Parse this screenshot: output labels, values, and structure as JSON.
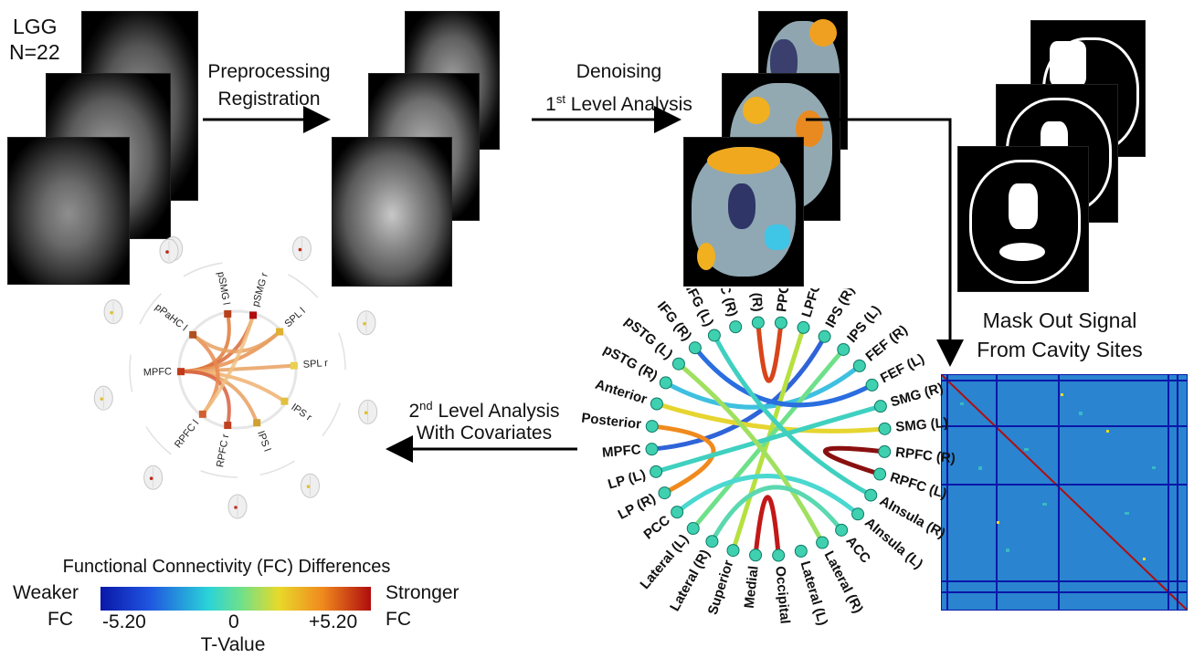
{
  "cohort": {
    "group": "LGG",
    "n": "N=22"
  },
  "steps": {
    "step1": [
      "Preprocessing",
      "Registration"
    ],
    "step2_line1": "Denoising",
    "step2_line2_sup": "st",
    "step2_line2_pre": "1",
    "step2_line2_post": " Level Analysis",
    "mask": [
      "Mask Out Signal",
      "From Cavity Sites"
    ],
    "step3_line1_pre": "2",
    "step3_line1_sup": "nd",
    "step3_line1_post": " Level Analysis",
    "step3_line2": "With Covariates"
  },
  "fc_title": "Functional Connectivity (FC) Differences",
  "colorbar": {
    "left_label": [
      "Weaker",
      "FC"
    ],
    "right_label": [
      "Stronger",
      "FC"
    ],
    "ticks": [
      "-5.20",
      "0",
      "+5.20"
    ],
    "axis_label": "T-Value",
    "min": -5.2,
    "max": 5.2
  },
  "small_circle_labels": [
    "pSMG l",
    "pSMG r",
    "SPL l",
    "SPL r",
    "IPS r",
    "IPS l",
    "RPFC r",
    "RPFC l",
    "MPFC",
    "pPaHC l"
  ],
  "large_circle_labels": [
    "LPFC (R)",
    "PPC (L)",
    "LPFC (L)",
    "IPS (R)",
    "IPS (L)",
    "FEF (R)",
    "FEF (L)",
    "SMG (R)",
    "SMG (L)",
    "RPFC (R)",
    "RPFC (L)",
    "AInsula (R)",
    "AInsula (L)",
    "ACC",
    "Lateral (R)",
    "Lateral (L)",
    "Occipital",
    "Medial",
    "Superior",
    "Lateral (R)",
    "Lateral (L)",
    "PCC",
    "LP (R)",
    "LP (L)",
    "MPFC",
    "Posterior",
    "Anterior",
    "pSTG (R)",
    "pSTG (L)",
    "IFG (R)",
    "IFG (L)",
    "PPC (R)"
  ],
  "colors": {
    "strong": "#b00d0d",
    "weak": "#0a17a8",
    "node": "#3fd0b0"
  }
}
